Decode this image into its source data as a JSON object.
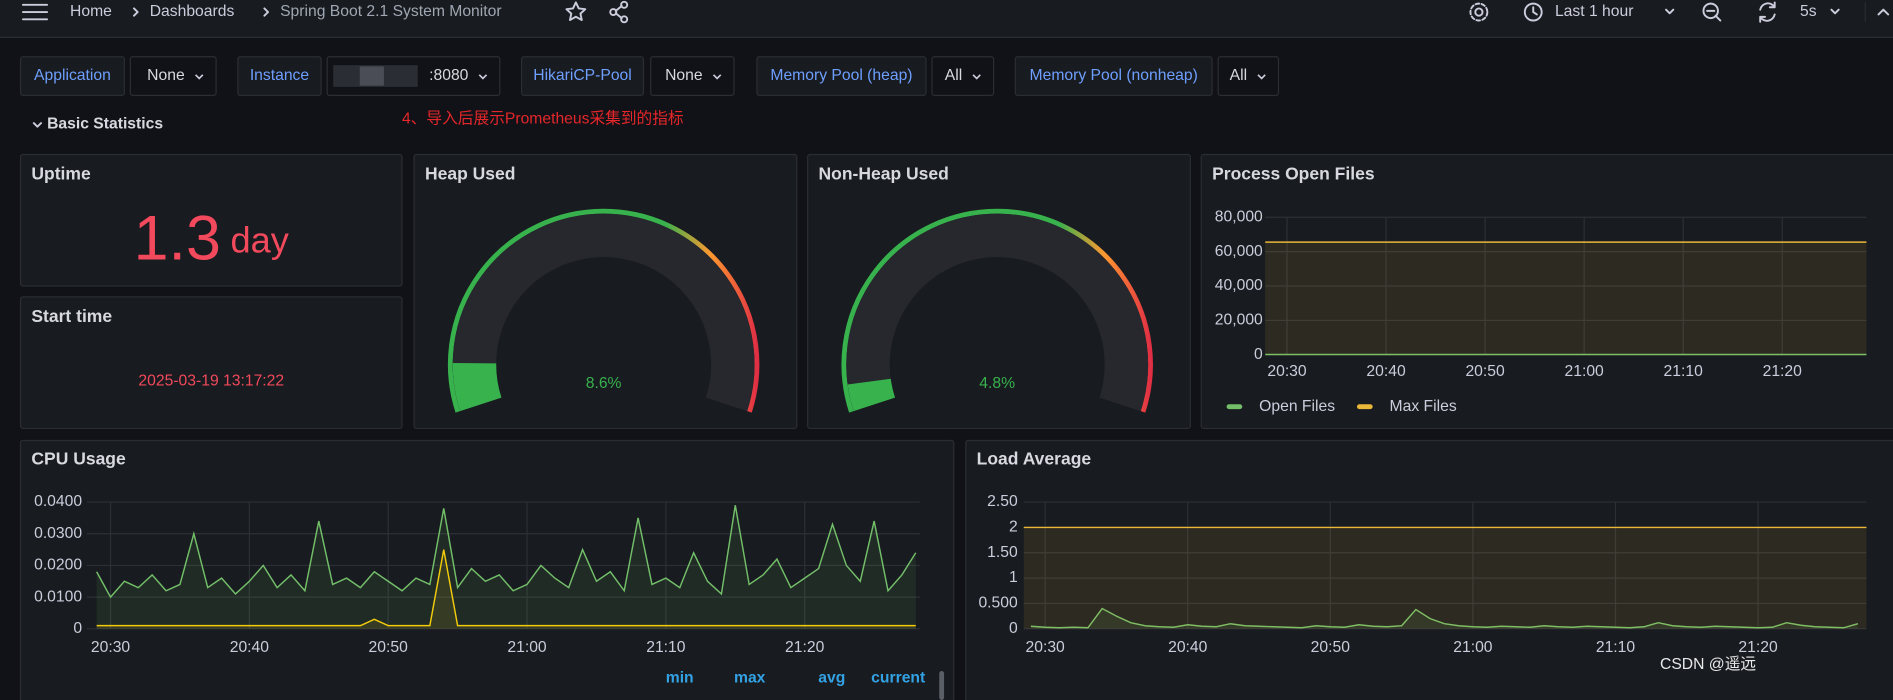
{
  "header": {
    "breadcrumbs": [
      "Home",
      "Dashboards",
      "Spring Boot 2.1 System Monitor"
    ],
    "time_range": "Last 1 hour",
    "refresh": "5s"
  },
  "variables": [
    {
      "label": "Application",
      "value": "None"
    },
    {
      "label": "Instance",
      "value": ":8080"
    },
    {
      "label": "HikariCP-Pool",
      "value": "None"
    },
    {
      "label": "Memory Pool (heap)",
      "value": "All"
    },
    {
      "label": "Memory Pool (nonheap)",
      "value": "All"
    }
  ],
  "row_title": "Basic Statistics",
  "annotation": "4、导入后展示Prometheus采集到的指标",
  "watermark": "CSDN @遥远",
  "panels": {
    "uptime": {
      "title": "Uptime",
      "value": 1.3,
      "unit": "day",
      "color": "#f2495c"
    },
    "start_time": {
      "title": "Start time",
      "value": "2025-03-19 13:17:22",
      "color": "#f2495c"
    },
    "heap": {
      "type": "gauge",
      "title": "Heap Used",
      "value": 8.6,
      "value_label": "8.6%",
      "min": 0,
      "max": 100,
      "color": "#37b24d"
    },
    "nonheap": {
      "type": "gauge",
      "title": "Non-Heap Used",
      "value": 4.8,
      "value_label": "4.8%",
      "min": 0,
      "max": 100,
      "color": "#37b24d"
    },
    "open_files": {
      "type": "line",
      "title": "Process Open Files",
      "xlim": [
        27.8,
        88.5
      ],
      "xticks": [
        {
          "value": 30,
          "label": "20:30"
        },
        {
          "value": 40,
          "label": "20:40"
        },
        {
          "value": 50,
          "label": "20:50"
        },
        {
          "value": 60,
          "label": "21:00"
        },
        {
          "value": 70,
          "label": "21:10"
        },
        {
          "value": 80,
          "label": "21:20"
        }
      ],
      "ylim": [
        0,
        80000
      ],
      "yticks": [
        0,
        {
          "value": 20000,
          "label": "20,000"
        },
        {
          "value": 40000,
          "label": "40,000"
        },
        {
          "value": 60000,
          "label": "60,000"
        },
        {
          "value": 80000,
          "label": "80,000"
        }
      ],
      "grid": true,
      "legend": "bottom",
      "series": [
        {
          "name": "Open Files",
          "color": "#73bf69",
          "x": [
            27.8,
            88.5
          ],
          "values": [
            200,
            200
          ]
        },
        {
          "name": "Max Files",
          "color": "#eab839",
          "x": [
            27.8,
            88.5
          ],
          "values": [
            65536,
            65536
          ]
        }
      ]
    },
    "cpu": {
      "type": "line",
      "title": "CPU Usage",
      "xlim": [
        28.3,
        88.3
      ],
      "xticks": [
        {
          "value": 30,
          "label": "20:30"
        },
        {
          "value": 40,
          "label": "20:40"
        },
        {
          "value": 50,
          "label": "20:50"
        },
        {
          "value": 60,
          "label": "21:00"
        },
        {
          "value": 70,
          "label": "21:10"
        },
        {
          "value": 80,
          "label": "21:20"
        }
      ],
      "ylim": [
        0,
        0.04
      ],
      "yticks": [
        0,
        {
          "value": 0.01,
          "label": "0.0100"
        },
        {
          "value": 0.02,
          "label": "0.0200"
        },
        {
          "value": 0.03,
          "label": "0.0300"
        },
        {
          "value": 0.04,
          "label": "0.0400"
        }
      ],
      "grid": true,
      "legend_columns": [
        "min",
        "max",
        "avg",
        "current"
      ],
      "x": [
        29,
        30,
        31,
        32,
        33,
        34,
        35,
        36,
        37,
        38,
        39,
        40,
        41,
        42,
        43,
        44,
        45,
        46,
        47,
        48,
        49,
        50,
        51,
        52,
        53,
        54,
        55,
        56,
        57,
        58,
        59,
        60,
        61,
        62,
        63,
        64,
        65,
        66,
        67,
        68,
        69,
        70,
        71,
        72,
        73,
        74,
        75,
        76,
        77,
        78,
        79,
        80,
        81,
        82,
        83,
        84,
        85,
        86,
        87,
        88
      ],
      "series": [
        {
          "color": "#73bf69",
          "values": [
            0.018,
            0.01,
            0.015,
            0.013,
            0.017,
            0.012,
            0.014,
            0.03,
            0.013,
            0.016,
            0.011,
            0.015,
            0.02,
            0.013,
            0.017,
            0.012,
            0.034,
            0.014,
            0.016,
            0.013,
            0.018,
            0.015,
            0.012,
            0.016,
            0.014,
            0.038,
            0.013,
            0.019,
            0.015,
            0.017,
            0.012,
            0.014,
            0.02,
            0.016,
            0.013,
            0.025,
            0.015,
            0.018,
            0.012,
            0.035,
            0.014,
            0.016,
            0.013,
            0.024,
            0.015,
            0.011,
            0.039,
            0.014,
            0.017,
            0.022,
            0.013,
            0.016,
            0.019,
            0.033,
            0.02,
            0.015,
            0.034,
            0.012,
            0.017,
            0.024
          ]
        },
        {
          "color": "#f2cc0c",
          "values": [
            0.001,
            0.001,
            0.001,
            0.001,
            0.001,
            0.001,
            0.001,
            0.001,
            0.001,
            0.001,
            0.001,
            0.001,
            0.001,
            0.001,
            0.001,
            0.001,
            0.001,
            0.001,
            0.001,
            0.001,
            0.003,
            0.001,
            0.001,
            0.001,
            0.001,
            0.025,
            0.001,
            0.001,
            0.001,
            0.001,
            0.001,
            0.001,
            0.001,
            0.001,
            0.001,
            0.001,
            0.001,
            0.001,
            0.001,
            0.001,
            0.001,
            0.001,
            0.001,
            0.001,
            0.001,
            0.001,
            0.001,
            0.001,
            0.001,
            0.001,
            0.001,
            0.001,
            0.001,
            0.001,
            0.001,
            0.001,
            0.001,
            0.001,
            0.001,
            0.001
          ]
        }
      ]
    },
    "load": {
      "type": "line",
      "title": "Load Average",
      "xlim": [
        28.5,
        87.6
      ],
      "xticks": [
        {
          "value": 30,
          "label": "20:30"
        },
        {
          "value": 40,
          "label": "20:40"
        },
        {
          "value": 50,
          "label": "20:50"
        },
        {
          "value": 60,
          "label": "21:00"
        },
        {
          "value": 70,
          "label": "21:10"
        },
        {
          "value": 80,
          "label": "21:20"
        }
      ],
      "ylim": [
        0,
        2.5
      ],
      "yticks": [
        0,
        {
          "value": 0.5,
          "label": "0.500"
        },
        1,
        {
          "value": 1.5,
          "label": "1.50"
        },
        2,
        {
          "value": 2.5,
          "label": "2.50"
        }
      ],
      "grid": true,
      "series": [
        {
          "color": "#73bf69",
          "x": [
            29,
            30,
            31,
            32,
            33,
            34,
            35,
            36,
            37,
            38,
            39,
            40,
            41,
            42,
            43,
            44,
            45,
            46,
            47,
            48,
            49,
            50,
            51,
            52,
            53,
            54,
            55,
            56,
            57,
            58,
            59,
            60,
            61,
            62,
            63,
            64,
            65,
            66,
            67,
            68,
            69,
            70,
            71,
            72,
            73,
            74,
            75,
            76,
            77,
            78,
            79,
            80,
            81,
            82,
            83,
            84,
            85,
            86,
            87
          ],
          "values": [
            0.05,
            0.03,
            0.02,
            0.03,
            0.02,
            0.4,
            0.25,
            0.12,
            0.06,
            0.04,
            0.03,
            0.08,
            0.05,
            0.04,
            0.1,
            0.06,
            0.05,
            0.04,
            0.03,
            0.02,
            0.06,
            0.04,
            0.03,
            0.08,
            0.05,
            0.04,
            0.06,
            0.38,
            0.2,
            0.1,
            0.06,
            0.04,
            0.03,
            0.05,
            0.04,
            0.03,
            0.06,
            0.04,
            0.03,
            0.05,
            0.04,
            0.03,
            0.02,
            0.04,
            0.12,
            0.06,
            0.04,
            0.03,
            0.05,
            0.04,
            0.03,
            0.02,
            0.03,
            0.12,
            0.07,
            0.04,
            0.03,
            0.02,
            0.1
          ]
        },
        {
          "color": "#eab839",
          "x": [
            28.5,
            87.6
          ],
          "values": [
            2,
            2
          ]
        }
      ]
    }
  }
}
